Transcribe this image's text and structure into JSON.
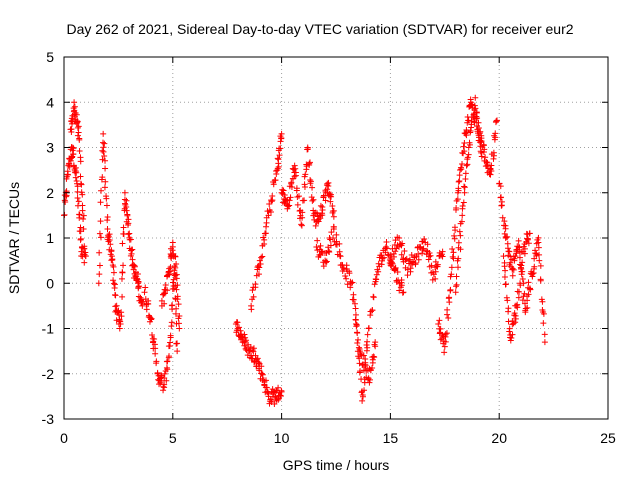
{
  "chart_data": {
    "type": "scatter",
    "title": "Day 262 of 2021, Sidereal Day-to-day VTEC variation (SDTVAR) for receiver eur2",
    "xlabel": "GPS time / hours",
    "ylabel": "SDTVAR / TECUs",
    "xlim": [
      0,
      25
    ],
    "ylim": [
      -3,
      5
    ],
    "xticks": [
      0,
      5,
      10,
      15,
      20,
      25
    ],
    "yticks": [
      -3,
      -2,
      -1,
      0,
      1,
      2,
      3,
      4,
      5
    ],
    "xtick_labels": [
      "0",
      "5",
      "10",
      "15",
      "20",
      "25"
    ],
    "ytick_labels": [
      "-3",
      "-2",
      "-1",
      "0",
      "1",
      "2",
      "3",
      "4",
      "5"
    ],
    "grid": true,
    "marker": "plus",
    "color": "#ff0000",
    "series": [
      {
        "name": "SDTVAR",
        "color": "#ff0000",
        "segments": [
          {
            "x": [
              0.0,
              0.2,
              0.4,
              0.6,
              0.8,
              1.0
            ],
            "y": [
              1.5,
              2.6,
              3.0,
              2.2,
              0.7,
              0.6
            ]
          },
          {
            "x": [
              0.3,
              0.5,
              0.7,
              0.9
            ],
            "y": [
              3.4,
              3.9,
              3.2,
              1.2
            ]
          },
          {
            "x": [
              1.6,
              1.8,
              2.0,
              2.2,
              2.4,
              2.6,
              2.8,
              3.0,
              3.2,
              3.4,
              3.6
            ],
            "y": [
              0.0,
              3.3,
              1.2,
              0.6,
              -0.6,
              -0.9,
              2.0,
              1.1,
              0.3,
              0.0,
              -0.5
            ]
          },
          {
            "x": [
              3.7,
              4.0,
              4.3,
              4.6,
              4.9,
              5.1,
              5.3
            ],
            "y": [
              -0.2,
              -0.8,
              -2.0,
              -2.3,
              -1.2,
              0.6,
              -1.0
            ]
          },
          {
            "x": [
              4.5,
              4.8,
              5.0,
              5.2
            ],
            "y": [
              -0.5,
              0.2,
              0.9,
              -1.5
            ]
          },
          {
            "x": [
              7.9,
              8.2,
              8.5,
              8.8,
              9.1,
              9.4,
              9.7,
              10.0
            ],
            "y": [
              -0.9,
              -1.2,
              -1.5,
              -1.6,
              -2.0,
              -2.5,
              -2.5,
              -2.4
            ]
          },
          {
            "x": [
              8.6,
              9.0,
              9.4,
              9.8,
              10.0
            ],
            "y": [
              -0.5,
              0.5,
              1.5,
              2.5,
              3.3
            ]
          },
          {
            "x": [
              10.0,
              10.3,
              10.6,
              10.9,
              11.2,
              11.5,
              11.8,
              12.1,
              12.4
            ],
            "y": [
              2.0,
              1.7,
              2.6,
              1.3,
              3.0,
              1.4,
              1.5,
              2.2,
              1.6
            ]
          },
          {
            "x": [
              11.6,
              12.0,
              12.4,
              12.8,
              13.2,
              13.6,
              14.0,
              14.3
            ],
            "y": [
              0.8,
              0.5,
              1.2,
              0.4,
              0.0,
              -1.5,
              -2.1,
              -1.3
            ]
          },
          {
            "x": [
              13.4,
              13.7,
              14.0,
              14.4,
              14.8,
              15.2,
              15.6
            ],
            "y": [
              -0.8,
              -2.6,
              -1.0,
              0.3,
              0.8,
              0.3,
              -0.2
            ]
          },
          {
            "x": [
              15.0,
              15.4,
              15.8,
              16.2,
              16.6,
              17.0,
              17.4
            ],
            "y": [
              0.5,
              1.0,
              0.3,
              0.6,
              0.9,
              0.2,
              0.7
            ]
          },
          {
            "x": [
              17.2,
              17.5,
              17.8,
              18.1,
              18.4,
              18.7,
              19.0,
              19.3,
              19.6,
              19.9
            ],
            "y": [
              -0.9,
              -1.4,
              0.2,
              2.0,
              3.1,
              4.0,
              3.4,
              2.9,
              2.4,
              3.6
            ]
          },
          {
            "x": [
              18.0,
              18.3,
              18.6,
              18.9,
              19.2
            ],
            "y": [
              -0.2,
              1.5,
              3.0,
              4.1,
              2.8
            ]
          },
          {
            "x": [
              20.0,
              20.3,
              20.6,
              20.9,
              21.2,
              21.5,
              21.8,
              22.1
            ],
            "y": [
              2.2,
              1.0,
              0.3,
              0.8,
              -0.6,
              0.2,
              0.9,
              -1.3
            ]
          },
          {
            "x": [
              20.2,
              20.5,
              20.8,
              21.1,
              21.4
            ],
            "y": [
              0.6,
              -1.2,
              -0.5,
              0.7,
              1.1
            ]
          }
        ]
      }
    ]
  }
}
